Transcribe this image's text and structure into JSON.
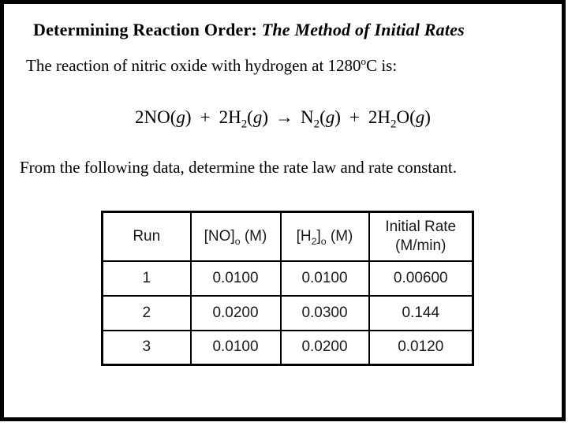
{
  "slide": {
    "title": {
      "bold": "Determining Reaction Order: ",
      "italic": "The Method of Initial Rates"
    },
    "intro": {
      "a": "The reaction of nitric oxide with hydrogen at 1280",
      "sup": "o",
      "b": "C is:"
    },
    "equation": {
      "e1": "2NO(",
      "g1": "g",
      "e2": ")",
      "plus1": "+",
      "e3": "2H",
      "s1": "2",
      "e4": "(",
      "g2": "g",
      "e5": ")",
      "arrow": "→",
      "e6": "N",
      "s2": "2",
      "e7": "(",
      "g3": "g",
      "e8": ")",
      "plus2": "+",
      "e9": "2H",
      "s3": "2",
      "e10": "O(",
      "g4": "g",
      "e11": ")"
    },
    "prompt": "From the following data, determine the rate law and rate constant.",
    "table": {
      "col_run": "Run",
      "col_no": {
        "a": "[NO]",
        "sub": "o",
        "b": " (M)"
      },
      "col_h2": {
        "a": "[H",
        "s": "2",
        "b": "]",
        "o": "o",
        "c": " (M)"
      },
      "col_rate": {
        "line1": "Initial Rate",
        "line2": "(M/min)"
      },
      "rows": [
        [
          "1",
          "0.0100",
          "0.0100",
          "0.00600"
        ],
        [
          "2",
          "0.0200",
          "0.0300",
          "0.144"
        ],
        [
          "3",
          "0.0100",
          "0.0200",
          "0.0120"
        ]
      ]
    }
  }
}
